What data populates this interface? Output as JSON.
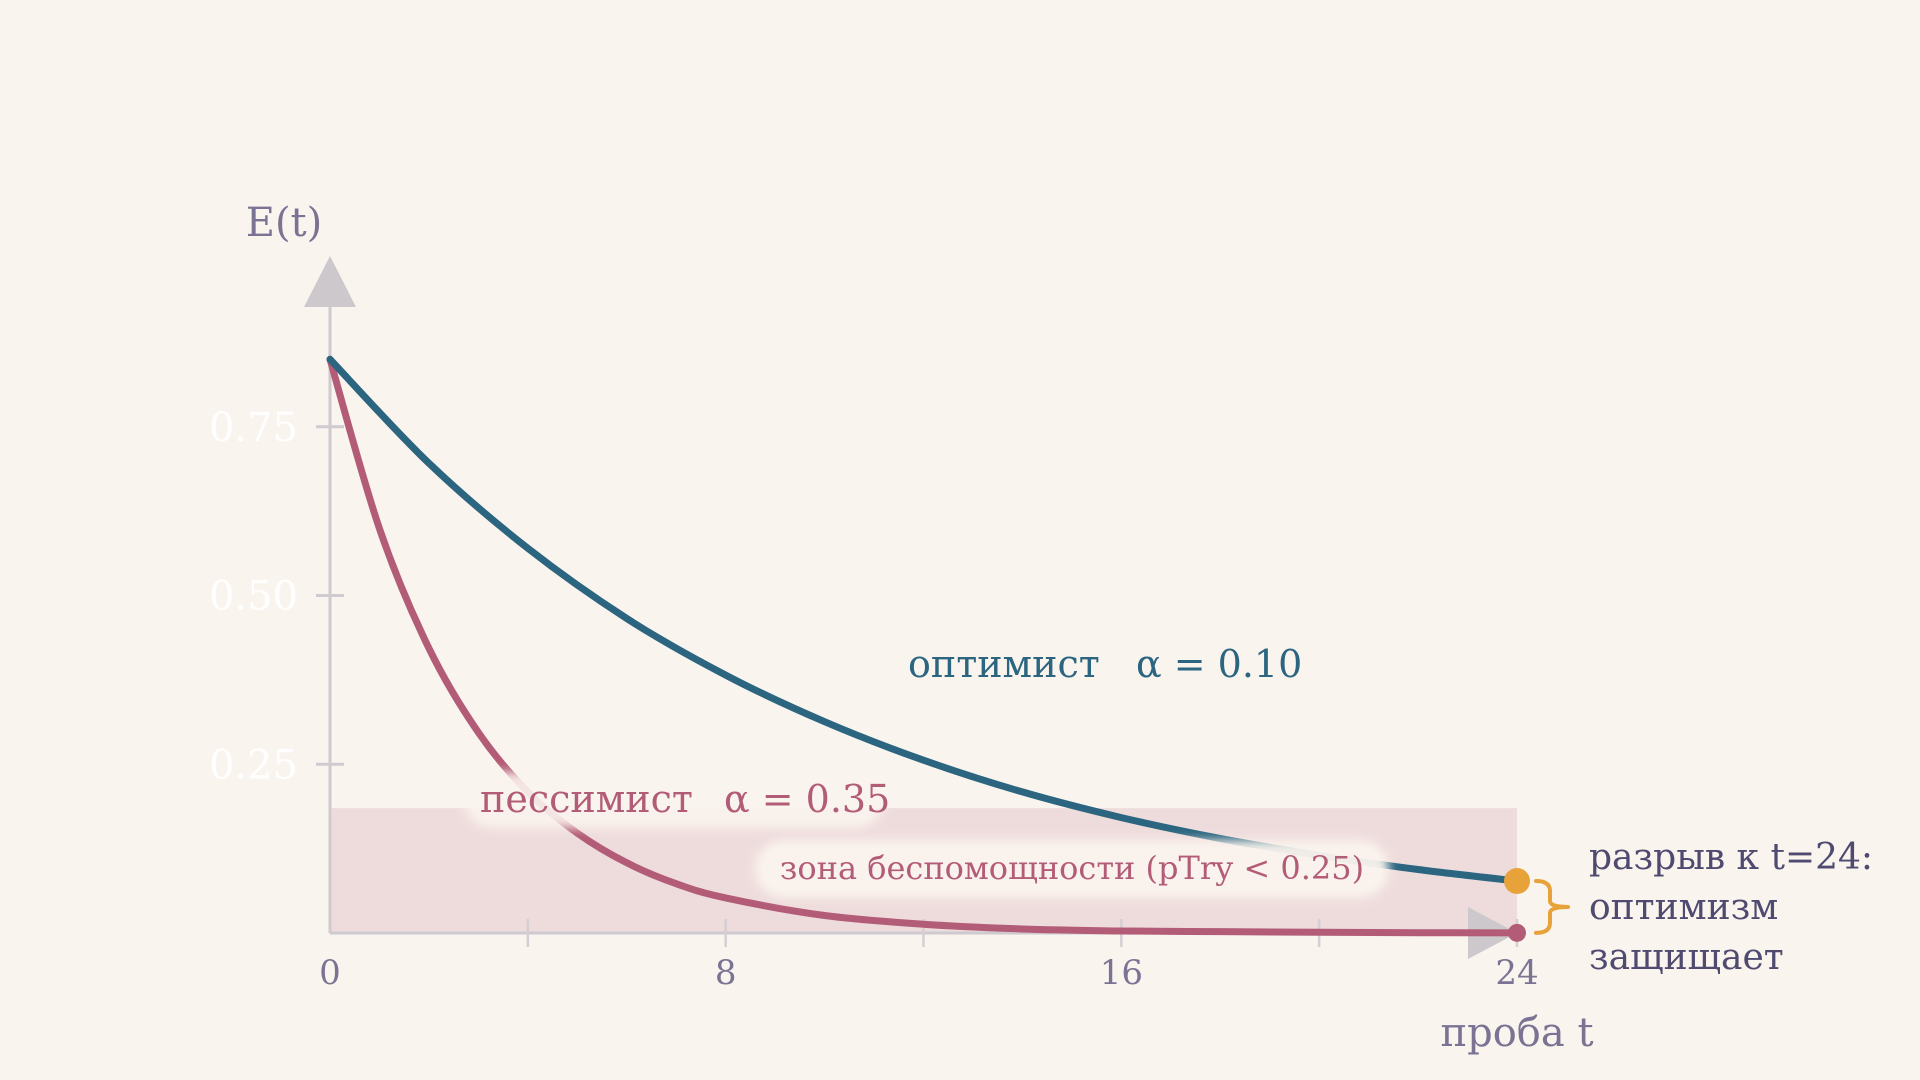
{
  "chart_data": {
    "type": "line",
    "ylabel": "E(t)",
    "xlabel": "проба t",
    "xlim": [
      0,
      24
    ],
    "ylim": [
      0,
      0.9
    ],
    "x_ticks": [
      0,
      8,
      16,
      24
    ],
    "x_minor_ticks": [
      4,
      12,
      20
    ],
    "y_ticks": [
      {
        "value": 0.25,
        "label": "0.25"
      },
      {
        "value": 0.5,
        "label": "0.50"
      },
      {
        "value": 0.75,
        "label": "0.75"
      }
    ],
    "series": [
      {
        "name": "оптимист",
        "alpha_label": "α = 0.10",
        "color": "#2b6580",
        "x": [
          0,
          2,
          4,
          6,
          8,
          10,
          12,
          14,
          16,
          18,
          20,
          22,
          24
        ],
        "y": [
          0.85,
          0.696,
          0.57,
          0.466,
          0.382,
          0.313,
          0.256,
          0.209,
          0.171,
          0.14,
          0.115,
          0.094,
          0.077
        ],
        "end_value": 0.077,
        "end_marker_color": "#e8a23a"
      },
      {
        "name": "пессимист",
        "alpha_label": "α = 0.35",
        "color": "#b35c77",
        "x": [
          0,
          1,
          2,
          3,
          4,
          5,
          6,
          7,
          8,
          10,
          12,
          14,
          16,
          18,
          20,
          22,
          24
        ],
        "y": [
          0.85,
          0.599,
          0.422,
          0.297,
          0.209,
          0.148,
          0.104,
          0.073,
          0.052,
          0.026,
          0.013,
          0.006,
          0.003,
          0.002,
          0.001,
          0.0005,
          0.0002
        ],
        "end_value": 0.0002,
        "end_marker_color": "#b35c77"
      }
    ],
    "zone": {
      "label": "зона беспомощности (pTry < 0.25)",
      "y_from": 0,
      "y_to": 0.185,
      "color": "#eedcdc"
    },
    "annotation": {
      "lines": [
        "разрыв к t=24:",
        "оптимизм",
        "защищает"
      ],
      "bracket_color": "#e8a23a"
    }
  }
}
